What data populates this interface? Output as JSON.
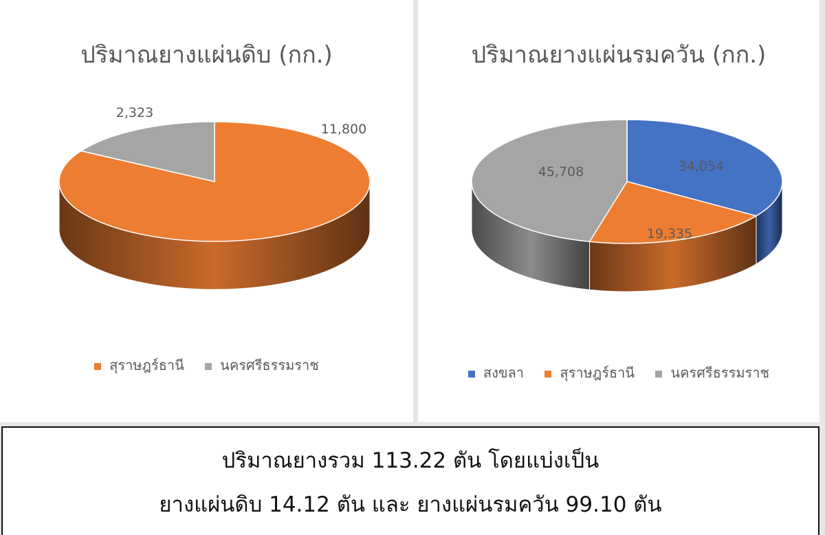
{
  "chart_data": [
    {
      "type": "pie",
      "title": "ปริมาณยางแผ่นดิบ (กก.)",
      "categories": [
        "สุราษฎร์ธานี",
        "นครศรีธรรมราช"
      ],
      "values": [
        11800,
        2323
      ],
      "value_labels": [
        "11,800",
        "2,323"
      ],
      "colors": [
        "#ED7D31",
        "#A5A5A5"
      ],
      "legend_position": "bottom",
      "style": "3d"
    },
    {
      "type": "pie",
      "title": "ปริมาณยางแผ่นรมควัน (กก.)",
      "categories": [
        "สงขลา",
        "สุราษฎร์ธานี",
        "นครศรีธรรมราช"
      ],
      "values": [
        34054,
        19335,
        45708
      ],
      "value_labels": [
        "34,054",
        "19,335",
        "45,708"
      ],
      "colors": [
        "#4472C4",
        "#ED7D31",
        "#A5A5A5"
      ],
      "legend_position": "bottom",
      "style": "3d"
    }
  ],
  "summary": {
    "line1": "ปริมาณยางรวม 113.22 ตัน โดยแบ่งเป็น",
    "line2": "ยางแผ่นดิบ 14.12 ตัน และ ยางแผ่นรมควัน 99.10 ตัน"
  }
}
